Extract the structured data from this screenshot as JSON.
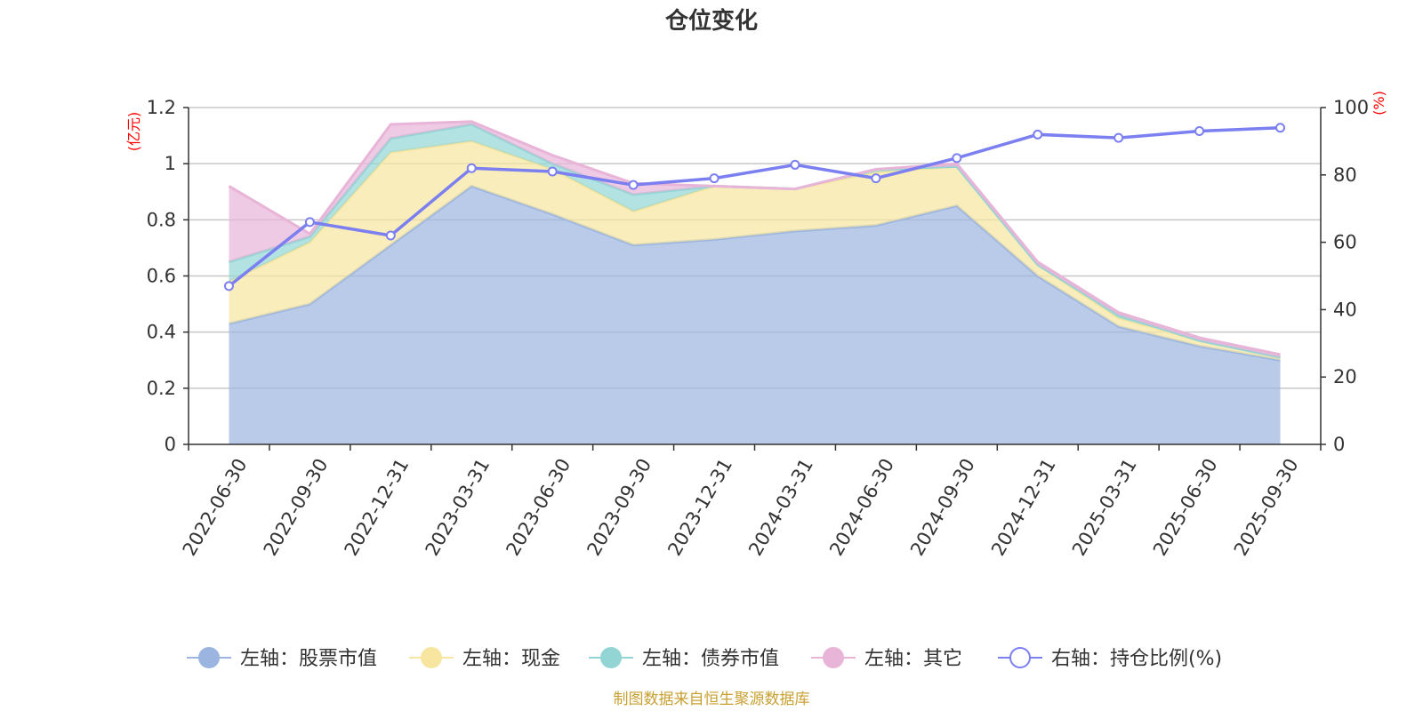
{
  "chart_data": {
    "type": "area",
    "title": "仓位变化",
    "left_unit": "(亿元)",
    "right_unit": "(%)",
    "categories": [
      "2022-06-30",
      "2022-09-30",
      "2022-12-31",
      "2023-03-31",
      "2023-06-30",
      "2023-09-30",
      "2023-12-31",
      "2024-03-31",
      "2024-06-30",
      "2024-09-30",
      "2024-12-31",
      "2025-03-31",
      "2025-06-30",
      "2025-09-30"
    ],
    "x_tick_labels": [
      "2022-06-30",
      "2022-09-30",
      "2022-12-31",
      "2023-03-31",
      "2023-06-30",
      "2023-09-30",
      "2023-12-31",
      "2024-03-31",
      "2024-06-30",
      "2024-09-30",
      "2024-12-31",
      "2025-03-31",
      "2025-06-30",
      "2025-09-30"
    ],
    "left_axis": {
      "min": 0,
      "max": 1.2,
      "ticks": [
        "0",
        "0.2",
        "0.4",
        "0.6",
        "0.8",
        "1",
        "1.2"
      ]
    },
    "right_axis": {
      "min": 0,
      "max": 100,
      "ticks": [
        "0",
        "20",
        "40",
        "60",
        "80",
        "100"
      ]
    },
    "stacked_series": [
      {
        "name": "左轴：股票市值",
        "color": "#9bb5e0",
        "values": [
          0.43,
          0.5,
          0.71,
          0.92,
          0.82,
          0.71,
          0.73,
          0.76,
          0.78,
          0.85,
          0.6,
          0.42,
          0.35,
          0.3
        ]
      },
      {
        "name": "左轴：现金",
        "color": "#f8e6a0",
        "values": [
          0.15,
          0.22,
          0.33,
          0.16,
          0.16,
          0.12,
          0.19,
          0.15,
          0.19,
          0.14,
          0.04,
          0.03,
          0.02,
          0.01
        ]
      },
      {
        "name": "左轴：债券市值",
        "color": "#93d5d5",
        "values": [
          0.07,
          0.02,
          0.05,
          0.06,
          0.02,
          0.06,
          0.0,
          0.0,
          0.01,
          0.0,
          0.0,
          0.01,
          0.0,
          0.0
        ]
      },
      {
        "name": "左轴：其它",
        "color": "#e8b4d8",
        "values": [
          0.27,
          0.01,
          0.05,
          0.01,
          0.03,
          0.04,
          0.0,
          0.0,
          0.0,
          0.01,
          0.01,
          0.01,
          0.01,
          0.01
        ]
      }
    ],
    "line_series": {
      "name": "右轴：持仓比例(%)",
      "color": "#7b7ff0",
      "values": [
        47,
        66,
        62,
        82,
        81,
        77,
        79,
        83,
        79,
        85,
        92,
        91,
        93,
        94
      ]
    },
    "legend_position": "bottom",
    "grid": true
  },
  "source_note": "制图数据来自恒生聚源数据库"
}
